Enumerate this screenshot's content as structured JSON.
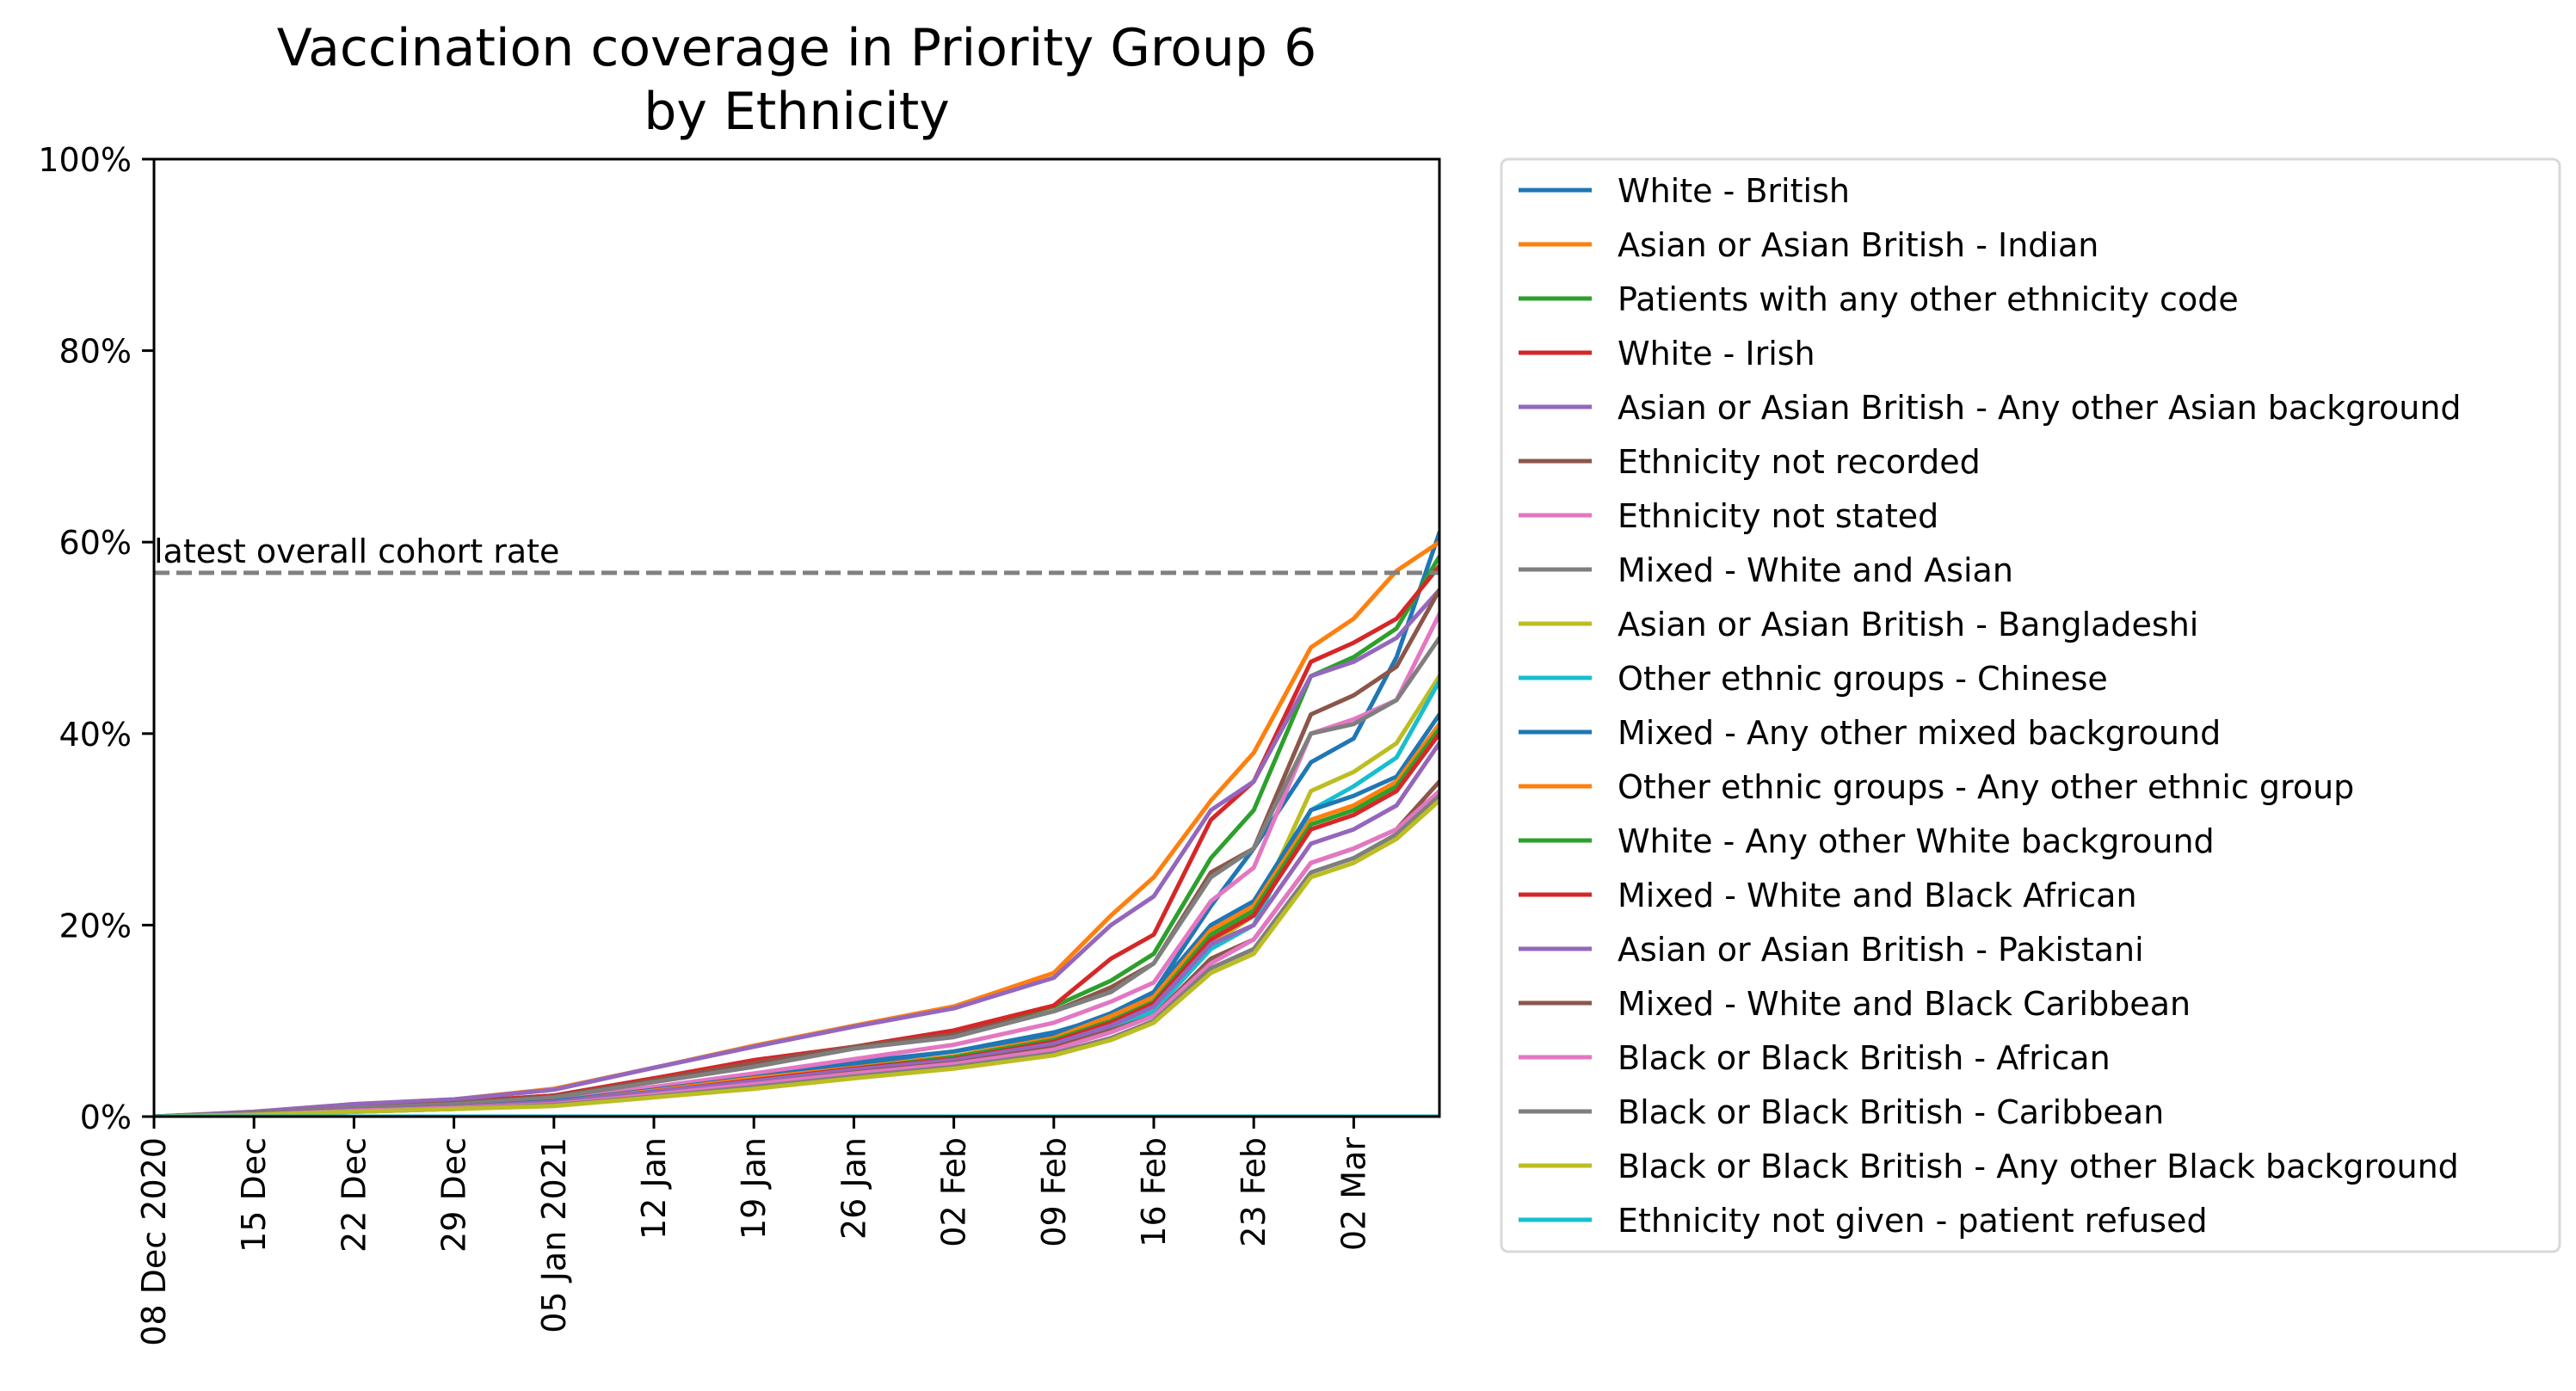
{
  "chart_data": {
    "type": "line",
    "title": "Vaccination coverage in Priority Group 6\nby Ethnicity",
    "xlabel": "",
    "ylabel": "",
    "x_start": "2020-12-08",
    "x_end": "2021-03-08",
    "x_ticks": [
      {
        "date": "2020-12-08",
        "label": "08 Dec 2020"
      },
      {
        "date": "2020-12-15",
        "label": "15 Dec"
      },
      {
        "date": "2020-12-22",
        "label": "22 Dec"
      },
      {
        "date": "2020-12-29",
        "label": "29 Dec"
      },
      {
        "date": "2021-01-05",
        "label": "05 Jan 2021"
      },
      {
        "date": "2021-01-12",
        "label": "12 Jan"
      },
      {
        "date": "2021-01-19",
        "label": "19 Jan"
      },
      {
        "date": "2021-01-26",
        "label": "26 Jan"
      },
      {
        "date": "2021-02-02",
        "label": "02 Feb"
      },
      {
        "date": "2021-02-09",
        "label": "09 Feb"
      },
      {
        "date": "2021-02-16",
        "label": "16 Feb"
      },
      {
        "date": "2021-02-23",
        "label": "23 Feb"
      },
      {
        "date": "2021-03-02",
        "label": "02 Mar"
      }
    ],
    "ylim": [
      0,
      100
    ],
    "y_ticks": [
      {
        "value": 0,
        "label": "0%"
      },
      {
        "value": 20,
        "label": "20%"
      },
      {
        "value": 40,
        "label": "40%"
      },
      {
        "value": 60,
        "label": "60%"
      },
      {
        "value": 80,
        "label": "80%"
      },
      {
        "value": 100,
        "label": "100%"
      }
    ],
    "grid": false,
    "legend_position": "outside right",
    "reference_line": {
      "label": "latest overall cohort rate",
      "value": 56.8,
      "color": "#808080"
    },
    "x": [
      "2020-12-08",
      "2020-12-15",
      "2020-12-22",
      "2020-12-29",
      "2021-01-05",
      "2021-01-12",
      "2021-01-19",
      "2021-01-26",
      "2021-02-02",
      "2021-02-09",
      "2021-02-13",
      "2021-02-16",
      "2021-02-20",
      "2021-02-23",
      "2021-02-27",
      "2021-03-02",
      "2021-03-05",
      "2021-03-08"
    ],
    "series": [
      {
        "name": "White - British",
        "color": "#1f77b4",
        "values": [
          0,
          0.3,
          0.8,
          1.1,
          1.6,
          3.0,
          4.3,
          5.7,
          6.8,
          8.8,
          10.5,
          13.0,
          22.0,
          28.0,
          37.0,
          39.5,
          48.0,
          61.0
        ]
      },
      {
        "name": "Asian or Asian British - Indian",
        "color": "#ff7f0e",
        "values": [
          0,
          0.5,
          1.3,
          1.8,
          2.9,
          5.1,
          7.4,
          9.5,
          11.5,
          15.0,
          21.0,
          25.0,
          33.0,
          38.0,
          49.0,
          52.0,
          57.0,
          60.0
        ]
      },
      {
        "name": "Patients with any other ethnicity code",
        "color": "#2ca02c",
        "values": [
          0,
          0.4,
          1.0,
          1.5,
          2.2,
          4.0,
          5.8,
          7.2,
          8.8,
          11.5,
          14.2,
          17.0,
          27.0,
          32.0,
          46.0,
          48.0,
          51.0,
          58.5
        ]
      },
      {
        "name": "White - Irish",
        "color": "#d62728",
        "values": [
          0,
          0.4,
          1.0,
          1.5,
          2.2,
          4.0,
          5.9,
          7.3,
          9.0,
          11.6,
          16.5,
          19.0,
          31.0,
          35.0,
          47.5,
          49.5,
          52.0,
          57.5
        ]
      },
      {
        "name": "Asian or Asian British - Any other Asian background",
        "color": "#9467bd",
        "values": [
          0,
          0.5,
          1.3,
          1.8,
          2.8,
          5.1,
          7.3,
          9.4,
          11.3,
          14.5,
          20.0,
          23.0,
          32.0,
          35.0,
          46.0,
          47.5,
          50.0,
          55.0
        ]
      },
      {
        "name": "Ethnicity not recorded",
        "color": "#8c564b",
        "values": [
          0,
          0.4,
          0.9,
          1.4,
          2.1,
          3.8,
          5.6,
          7.3,
          8.6,
          11.0,
          13.5,
          16.0,
          25.5,
          28.0,
          42.0,
          44.0,
          47.0,
          55.0
        ]
      },
      {
        "name": "Ethnicity not stated",
        "color": "#e377c2",
        "values": [
          0,
          0.3,
          0.8,
          1.2,
          1.8,
          3.1,
          4.5,
          6.0,
          7.5,
          9.8,
          12.0,
          14.0,
          22.5,
          26.0,
          40.0,
          41.5,
          43.5,
          52.5
        ]
      },
      {
        "name": "Mixed - White and Asian",
        "color": "#7f7f7f",
        "values": [
          0,
          0.4,
          0.9,
          1.3,
          2.0,
          3.6,
          5.2,
          7.1,
          8.3,
          11.0,
          13.0,
          16.0,
          25.0,
          28.0,
          40.0,
          41.0,
          43.5,
          50.0
        ]
      },
      {
        "name": "Asian or Asian British - Bangladeshi",
        "color": "#bcbd22",
        "values": [
          0,
          0.2,
          0.6,
          0.9,
          1.3,
          2.4,
          3.5,
          4.6,
          5.6,
          7.8,
          10.0,
          12.0,
          18.0,
          21.0,
          34.0,
          36.0,
          39.0,
          46.0
        ]
      },
      {
        "name": "Other ethnic groups - Chinese",
        "color": "#17becf",
        "values": [
          0,
          0.2,
          0.5,
          0.8,
          1.2,
          2.2,
          3.3,
          4.3,
          5.3,
          7.0,
          9.2,
          11.0,
          17.5,
          20.0,
          32.0,
          34.5,
          37.5,
          45.5
        ]
      },
      {
        "name": "Mixed - Any other mixed background",
        "color": "#1f77b4",
        "values": [
          0,
          0.3,
          0.7,
          1.0,
          1.6,
          2.8,
          4.1,
          5.5,
          6.8,
          8.6,
          10.8,
          13.0,
          20.0,
          22.5,
          32.0,
          33.5,
          35.5,
          42.0
        ]
      },
      {
        "name": "Other ethnic groups - Any other ethnic group",
        "color": "#ff7f0e",
        "values": [
          0,
          0.3,
          0.7,
          1.0,
          1.5,
          2.7,
          4.0,
          5.1,
          6.3,
          8.2,
          10.5,
          12.5,
          19.5,
          22.0,
          31.0,
          32.5,
          35.0,
          41.0
        ]
      },
      {
        "name": "White - Any other White background",
        "color": "#2ca02c",
        "values": [
          0,
          0.3,
          0.7,
          1.0,
          1.5,
          2.6,
          3.8,
          5.0,
          6.2,
          8.0,
          10.0,
          12.0,
          19.0,
          21.5,
          30.5,
          32.0,
          34.5,
          40.5
        ]
      },
      {
        "name": "Mixed - White and Black African",
        "color": "#d62728",
        "values": [
          0,
          0.3,
          0.7,
          1.0,
          1.5,
          2.6,
          3.8,
          5.0,
          6.0,
          7.8,
          9.8,
          11.8,
          18.5,
          21.0,
          30.0,
          31.5,
          34.0,
          40.0
        ]
      },
      {
        "name": "Asian or Asian British - Pakistani",
        "color": "#9467bd",
        "values": [
          0,
          0.3,
          0.7,
          1.0,
          1.5,
          2.6,
          3.7,
          4.9,
          5.9,
          7.6,
          9.5,
          11.5,
          18.0,
          20.0,
          28.5,
          30.0,
          32.5,
          39.0
        ]
      },
      {
        "name": "Mixed - White and Black Caribbean",
        "color": "#8c564b",
        "values": [
          0,
          0.2,
          0.6,
          0.9,
          1.3,
          2.3,
          3.4,
          4.6,
          5.6,
          7.2,
          9.0,
          10.5,
          16.5,
          18.5,
          26.5,
          28.0,
          30.0,
          35.0
        ]
      },
      {
        "name": "Black or Black British - African",
        "color": "#e377c2",
        "values": [
          0,
          0.2,
          0.6,
          0.9,
          1.3,
          2.3,
          3.4,
          4.5,
          5.5,
          7.0,
          8.8,
          10.5,
          16.0,
          18.5,
          26.5,
          28.0,
          30.0,
          34.0
        ]
      },
      {
        "name": "Black or Black British - Caribbean",
        "color": "#7f7f7f",
        "values": [
          0,
          0.2,
          0.5,
          0.8,
          1.2,
          2.1,
          3.1,
          4.2,
          5.2,
          6.6,
          8.2,
          10.0,
          15.5,
          17.5,
          25.5,
          27.0,
          29.5,
          33.5
        ]
      },
      {
        "name": "Black or Black British - Any other Black background",
        "color": "#bcbd22",
        "values": [
          0,
          0.2,
          0.5,
          0.8,
          1.1,
          2.0,
          2.9,
          4.0,
          5.0,
          6.4,
          8.0,
          9.8,
          15.0,
          17.0,
          25.0,
          26.5,
          29.0,
          33.0
        ]
      },
      {
        "name": "Ethnicity not given - patient refused",
        "color": "#17becf",
        "values": [
          0,
          0,
          0,
          0,
          0,
          0,
          0,
          0,
          0,
          0,
          0,
          0,
          0,
          0,
          0,
          0,
          0,
          0
        ]
      }
    ]
  }
}
